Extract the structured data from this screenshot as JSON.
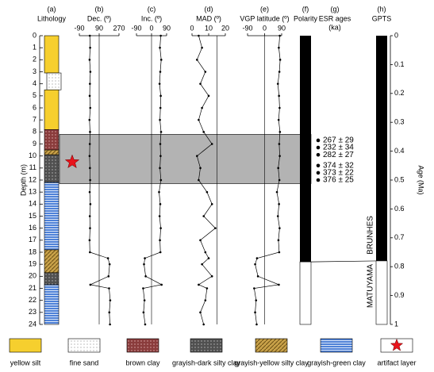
{
  "depth_axis": {
    "label": "Depth (m)",
    "ylim": [
      0,
      24
    ],
    "yticks": [
      0,
      1,
      2,
      3,
      4,
      5,
      6,
      7,
      8,
      9,
      10,
      11,
      12,
      13,
      14,
      15,
      16,
      17,
      18,
      19,
      20,
      21,
      22,
      23,
      24
    ]
  },
  "age_axis": {
    "label": "Age (Ma)",
    "ylim": [
      0,
      1
    ],
    "yticks": [
      0,
      0.1,
      0.2,
      0.3,
      0.4,
      0.5,
      0.6,
      0.7,
      0.8,
      0.9,
      1
    ]
  },
  "band": [
    8.2,
    12.3
  ],
  "lithology": {
    "letter": "(a)",
    "title": "Lithology",
    "layers": [
      {
        "top": 0,
        "bottom": 3.1,
        "kind": 0
      },
      {
        "top": 3.1,
        "bottom": 4.5,
        "kind": 1
      },
      {
        "top": 4.5,
        "bottom": 7.8,
        "kind": 0
      },
      {
        "top": 7.8,
        "bottom": 9.5,
        "kind": 2
      },
      {
        "top": 9.5,
        "bottom": 9.9,
        "kind": 4
      },
      {
        "top": 9.9,
        "bottom": 12.2,
        "kind": 3
      },
      {
        "top": 12.2,
        "bottom": 17.8,
        "kind": 5
      },
      {
        "top": 17.8,
        "bottom": 19.7,
        "kind": 4
      },
      {
        "top": 19.7,
        "bottom": 20.7,
        "kind": 3
      },
      {
        "top": 20.7,
        "bottom": 24,
        "kind": 5
      }
    ],
    "artifact_depth": 10.5
  },
  "depths": [
    0,
    1,
    2,
    3,
    4,
    5,
    6,
    7,
    8,
    9,
    10,
    11,
    12,
    13,
    14,
    15,
    16,
    17,
    18,
    18.5,
    19,
    20,
    20.7,
    21,
    22,
    23,
    24
  ],
  "chart_data": [
    {
      "type": "line",
      "letter": "(b)",
      "title": "Dec. (º)",
      "xlim": [
        -90,
        270
      ],
      "xticks": [
        -90,
        90,
        270
      ],
      "ref": 90,
      "values": [
        5,
        8,
        3,
        10,
        6,
        4,
        9,
        2,
        7,
        5,
        3,
        6,
        8,
        4,
        10,
        5,
        7,
        3,
        6,
        170,
        185,
        175,
        10,
        180,
        190,
        182,
        188
      ]
    },
    {
      "type": "line",
      "letter": "(c)",
      "title": "Inc. (º)",
      "xlim": [
        -90,
        90
      ],
      "xticks": [
        -90,
        0,
        90
      ],
      "ref": 0,
      "values": [
        55,
        50,
        58,
        52,
        48,
        55,
        53,
        50,
        57,
        52,
        54,
        50,
        56,
        45,
        52,
        48,
        55,
        50,
        53,
        -40,
        -45,
        -35,
        60,
        -50,
        -42,
        -48,
        -38
      ]
    },
    {
      "type": "line",
      "letter": "(d)",
      "title": "MAD (º)",
      "xlim": [
        0,
        20
      ],
      "xticks": [
        0,
        10,
        20
      ],
      "ref": 15,
      "values": [
        4,
        6,
        3,
        8,
        5,
        10,
        6,
        4,
        7,
        12,
        3,
        5,
        4,
        9,
        12,
        7,
        14,
        5,
        8,
        10,
        6,
        12,
        4,
        9,
        8,
        5,
        7
      ]
    },
    {
      "type": "line",
      "letter": "(e)",
      "title": "VGP latitude (º)",
      "xlim": [
        -90,
        90
      ],
      "xticks": [
        -90,
        0,
        90
      ],
      "ref": 0,
      "values": [
        80,
        75,
        82,
        78,
        70,
        76,
        79,
        74,
        81,
        77,
        80,
        72,
        78,
        65,
        76,
        70,
        79,
        73,
        77,
        -40,
        -50,
        -35,
        75,
        -55,
        -45,
        -50,
        -42
      ]
    }
  ],
  "polarity": {
    "letter": "(f)",
    "title": "Polarity",
    "boundary": 18.8
  },
  "esr": {
    "letter": "(g)",
    "title": "ESR ages",
    "unit": "(ka)",
    "items": [
      {
        "depth": 8.7,
        "value": 267,
        "error": 29,
        "label": "267 ± 29"
      },
      {
        "depth": 9.3,
        "value": 232,
        "error": 34,
        "label": "232 ± 34"
      },
      {
        "depth": 9.9,
        "value": 282,
        "error": 27,
        "label": "282 ± 27"
      },
      {
        "depth": 10.8,
        "value": 374,
        "error": 32,
        "label": "374 ± 32"
      },
      {
        "depth": 11.4,
        "value": 373,
        "error": 22,
        "label": "373 ± 22"
      },
      {
        "depth": 12.0,
        "value": 376,
        "error": 25,
        "label": "376 ± 25"
      }
    ]
  },
  "gpts": {
    "letter": "(h)",
    "title": "GPTS",
    "boundary": 0.78,
    "upper": "BRUNHES",
    "lower": "MATUYAMA"
  },
  "legend": [
    "yellow silt",
    "fine sand",
    "brown clay",
    "grayish-dark silty clay",
    "grayish-yellow silty clay",
    "grayish-green clay",
    "artifact layer"
  ]
}
